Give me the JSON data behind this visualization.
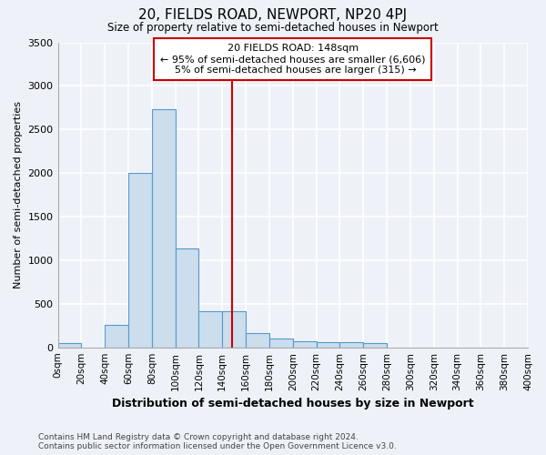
{
  "title": "20, FIELDS ROAD, NEWPORT, NP20 4PJ",
  "subtitle": "Size of property relative to semi-detached houses in Newport",
  "xlabel": "Distribution of semi-detached houses by size in Newport",
  "ylabel": "Number of semi-detached properties",
  "property_label": "20 FIELDS ROAD: 148sqm",
  "pct_smaller": 95,
  "count_smaller": 6606,
  "pct_larger": 5,
  "count_larger": 315,
  "bin_edges": [
    0,
    20,
    40,
    60,
    80,
    100,
    120,
    140,
    160,
    180,
    200,
    220,
    240,
    260,
    280,
    300,
    320,
    340,
    360,
    380,
    400
  ],
  "bar_values": [
    50,
    0,
    260,
    2000,
    2730,
    1140,
    420,
    420,
    160,
    100,
    70,
    60,
    60,
    50,
    0,
    0,
    0,
    0,
    0,
    0
  ],
  "bar_facecolor": "#ccdded",
  "bar_edgecolor": "#5599cc",
  "vline_x": 148,
  "vline_color": "#cc0000",
  "box_facecolor": "white",
  "box_edgecolor": "#cc0000",
  "ylim": [
    0,
    3500
  ],
  "yticks": [
    0,
    500,
    1000,
    1500,
    2000,
    2500,
    3000,
    3500
  ],
  "background_color": "#eef2f8",
  "grid_color": "white",
  "footnote": "Contains HM Land Registry data © Crown copyright and database right 2024.\nContains public sector information licensed under the Open Government Licence v3.0."
}
